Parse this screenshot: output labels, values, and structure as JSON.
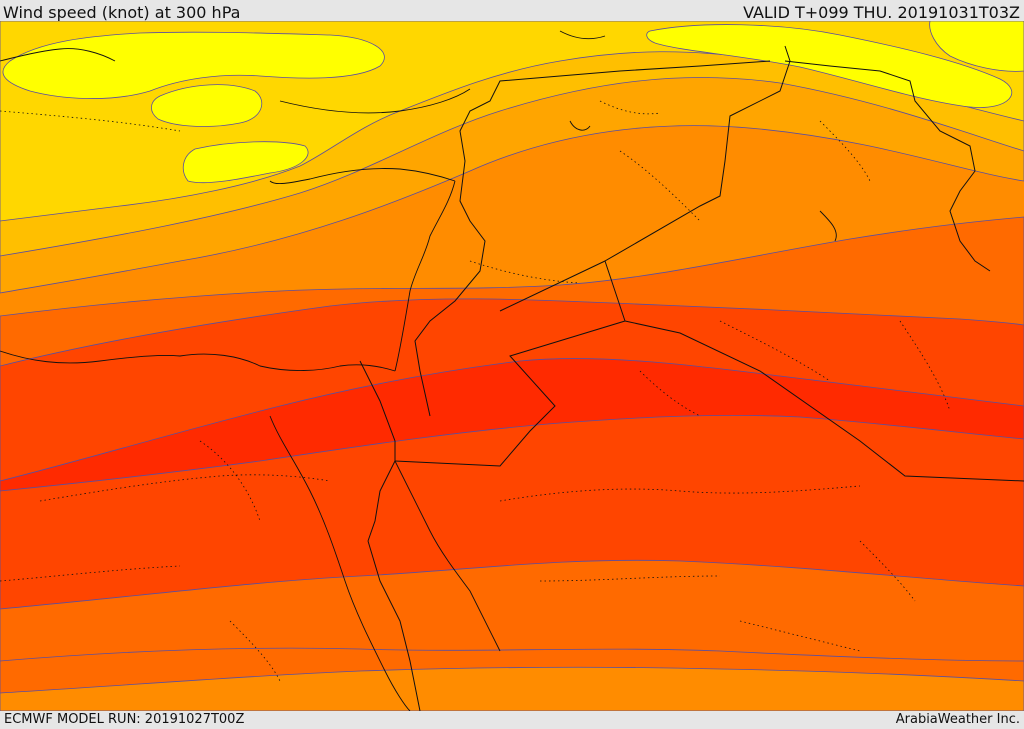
{
  "header": {
    "title": "Wind speed (knot) at 300 hPa",
    "valid_time": "VALID T+099 THU. 20191031T03Z"
  },
  "footer": {
    "model_run": "ECMWF MODEL RUN: 20191027T00Z",
    "credit": "ArabiaWeather Inc."
  },
  "map": {
    "field": "wind speed at 300 hPa",
    "colors": {
      "band_lightest": "#ffff00",
      "band_2": "#ffd700",
      "band_3": "#ffbf00",
      "band_4": "#ffa500",
      "band_5": "#ff8c00",
      "band_6": "#ff6a00",
      "band_7": "#ff4500",
      "band_core": "#ff2a00",
      "contour": "#5a4ea0",
      "border": "#111111"
    }
  }
}
